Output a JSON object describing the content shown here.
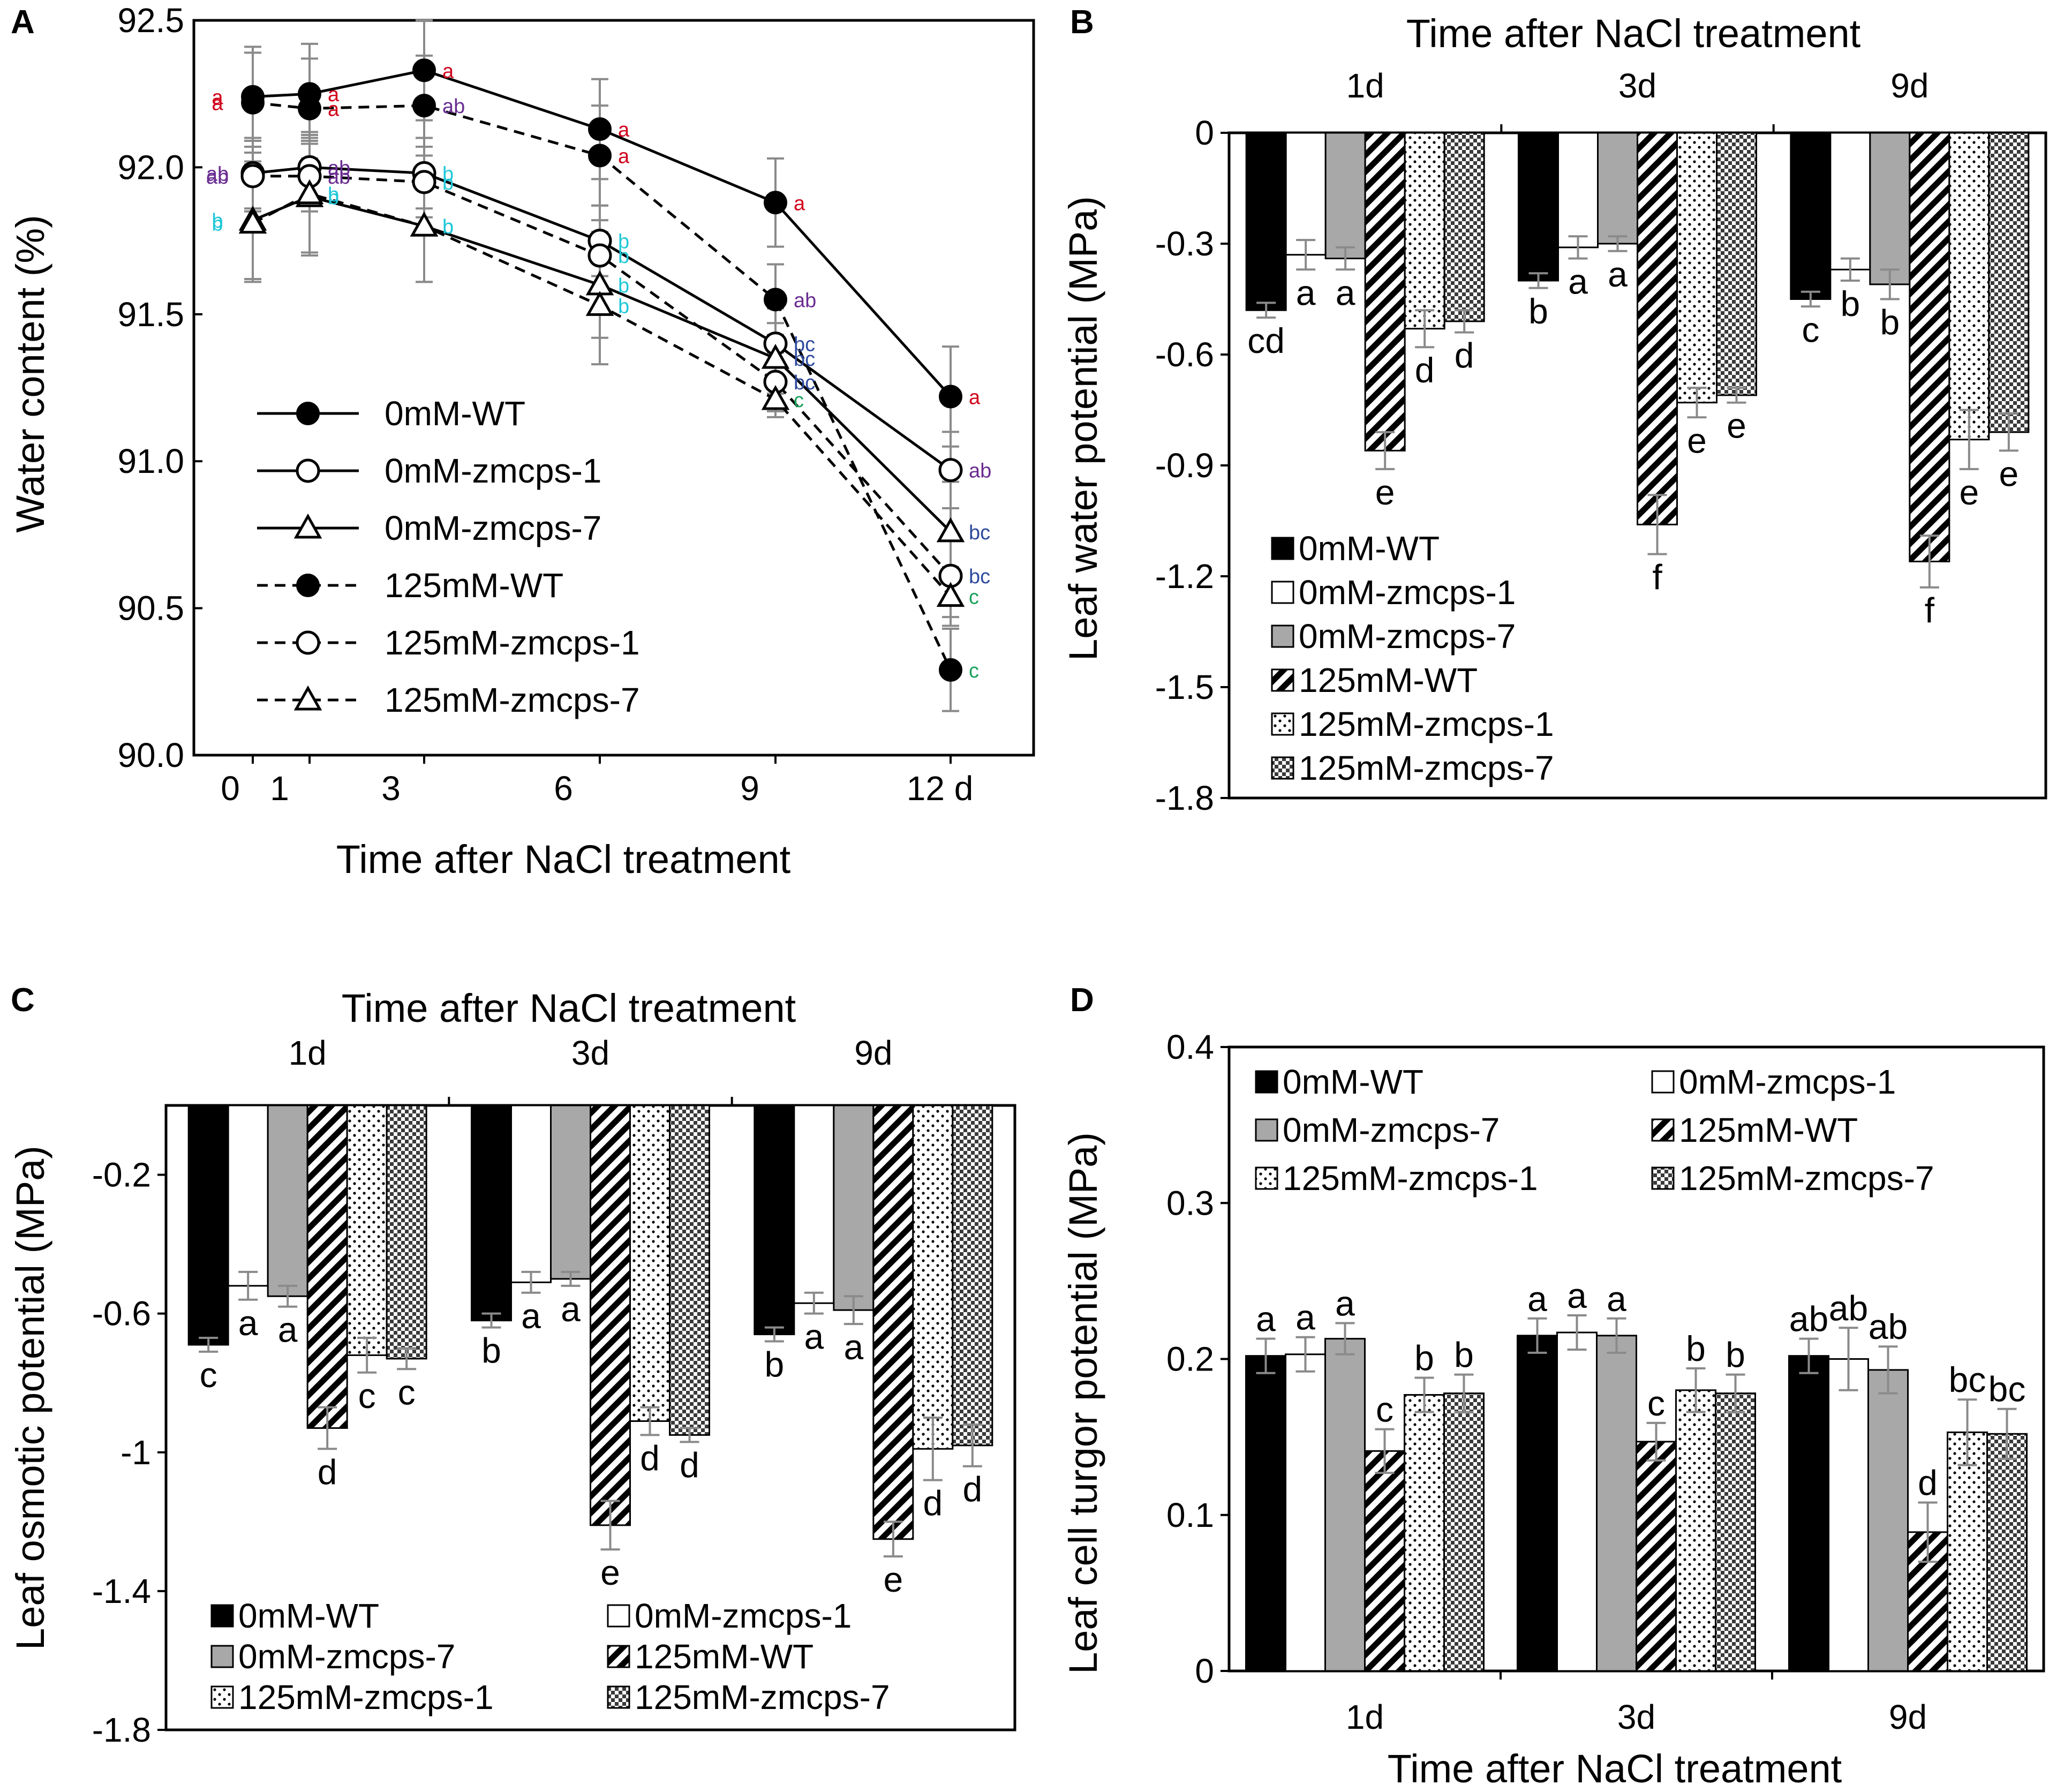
{
  "chart_data": [
    {
      "panel": "A",
      "type": "line",
      "title": "",
      "xlabel": "Time after NaCl treatment",
      "ylabel": "Water content (%)",
      "x_tick_labels": [
        "0",
        "1",
        "3",
        "6",
        "9",
        "12 d"
      ],
      "x_tick_values": [
        0,
        1,
        3,
        6,
        9,
        12
      ],
      "y_tick_labels": [
        "90.0",
        "90.5",
        "91.0",
        "91.5",
        "92.0",
        "92.5"
      ],
      "ylim": [
        90.0,
        92.5
      ],
      "x": [
        0,
        1,
        3,
        6,
        9,
        12
      ],
      "series": [
        {
          "name": "0mM-WT",
          "marker": "filled-circle",
          "line": "solid",
          "values": [
            92.24,
            92.25,
            92.33,
            92.13,
            91.88,
            91.22
          ],
          "errors": [
            0.17,
            0.17,
            0.17,
            0.17,
            0.15,
            0.17
          ],
          "letters": [
            "a",
            "a",
            "a",
            "a",
            "a",
            "a"
          ],
          "letter_color": "#d0021b"
        },
        {
          "name": "0mM-zmcps-1",
          "marker": "open-circle",
          "line": "solid",
          "values": [
            91.98,
            92.0,
            91.98,
            91.75,
            91.4,
            90.97
          ],
          "errors": [
            0.12,
            0.12,
            0.12,
            0.12,
            0.12,
            0.13
          ],
          "letters": [
            "ab",
            "ab",
            "b",
            "b",
            "bc",
            "ab"
          ],
          "letter_colors": [
            "#6a2c91",
            "#6a2c91",
            "#1ec8d8",
            "#1ec8d8",
            "#2e4a9e",
            "#6a2c91"
          ]
        },
        {
          "name": "0mM-zmcps-7",
          "marker": "open-triangle",
          "line": "solid",
          "values": [
            91.82,
            91.9,
            91.8,
            91.6,
            91.35,
            90.76
          ],
          "errors": [
            0.2,
            0.2,
            0.19,
            0.18,
            0.12,
            0.17
          ],
          "letters": [
            "b",
            "b",
            "b",
            "b",
            "bc",
            "bc"
          ],
          "letter_colors": [
            "#1ec8d8",
            "#1ec8d8",
            "#1ec8d8",
            "#1ec8d8",
            "#2e4a9e",
            "#2e4a9e"
          ]
        },
        {
          "name": "125mM-WT",
          "marker": "filled-circle",
          "line": "dashed",
          "values": [
            92.22,
            92.2,
            92.21,
            92.04,
            91.55,
            90.29
          ],
          "errors": [
            0.17,
            0.17,
            0.17,
            0.17,
            0.12,
            0.14
          ],
          "letters": [
            "a",
            "a",
            "ab",
            "a",
            "ab",
            "c"
          ],
          "letter_colors": [
            "#d0021b",
            "#d0021b",
            "#6a2c91",
            "#d0021b",
            "#6a2c91",
            "#1aa15a"
          ]
        },
        {
          "name": "125mM-zmcps-1",
          "marker": "open-circle",
          "line": "dashed",
          "values": [
            91.97,
            91.97,
            91.95,
            91.7,
            91.27,
            90.61
          ],
          "errors": [
            0.12,
            0.12,
            0.12,
            0.12,
            0.1,
            0.14
          ],
          "letters": [
            "ab",
            "ab",
            "b",
            "b",
            "bc",
            "bc"
          ],
          "letter_colors": [
            "#6a2c91",
            "#6a2c91",
            "#1ec8d8",
            "#1ec8d8",
            "#2e4a9e",
            "#2e4a9e"
          ]
        },
        {
          "name": "125mM-zmcps-7",
          "marker": "open-triangle",
          "line": "dashed",
          "values": [
            91.81,
            91.91,
            91.8,
            91.53,
            91.21,
            90.54
          ],
          "errors": [
            0.2,
            0.2,
            0.19,
            0.2,
            0.06,
            0.1
          ],
          "letters": [
            "b",
            "b",
            "b",
            "b",
            "c",
            "c"
          ],
          "letter_colors": [
            "#1ec8d8",
            "#1ec8d8",
            "#1ec8d8",
            "#1ec8d8",
            "#1aa15a",
            "#1aa15a"
          ]
        }
      ]
    },
    {
      "panel": "B",
      "type": "bar",
      "title": "Time after NaCl treatment",
      "xlabel": "",
      "ylabel": "Leaf water potential (MPa)",
      "categories": [
        "1d",
        "3d",
        "9d"
      ],
      "y_tick_labels": [
        "0",
        "-0.3",
        "-0.6",
        "-0.9",
        "-1.2",
        "-1.5",
        "-1.8"
      ],
      "ylim": [
        -1.8,
        0
      ],
      "legend_position": "bottom-left",
      "series": [
        {
          "name": "0mM-WT",
          "fill": "black",
          "values": [
            -0.48,
            -0.4,
            -0.45
          ],
          "errors": [
            0.02,
            0.02,
            0.02
          ],
          "letters": [
            "cd",
            "b",
            "c"
          ]
        },
        {
          "name": "0mM-zmcps-1",
          "fill": "white",
          "values": [
            -0.33,
            -0.31,
            -0.37
          ],
          "errors": [
            0.04,
            0.03,
            0.03
          ],
          "letters": [
            "a",
            "a",
            "b"
          ]
        },
        {
          "name": "0mM-zmcps-7",
          "fill": "gray",
          "values": [
            -0.34,
            -0.3,
            -0.41
          ],
          "errors": [
            0.03,
            0.02,
            0.04
          ],
          "letters": [
            "a",
            "a",
            "b"
          ]
        },
        {
          "name": "125mM-WT",
          "fill": "diagonal",
          "values": [
            -0.86,
            -1.06,
            -1.16
          ],
          "errors": [
            0.05,
            0.08,
            0.07
          ],
          "letters": [
            "e",
            "f",
            "f"
          ]
        },
        {
          "name": "125mM-zmcps-1",
          "fill": "dots",
          "values": [
            -0.53,
            -0.73,
            -0.83
          ],
          "errors": [
            0.05,
            0.04,
            0.08
          ],
          "letters": [
            "d",
            "e",
            "e"
          ]
        },
        {
          "name": "125mM-zmcps-7",
          "fill": "checker",
          "values": [
            -0.51,
            -0.71,
            -0.81
          ],
          "errors": [
            0.03,
            0.02,
            0.05
          ],
          "letters": [
            "d",
            "e",
            "e"
          ]
        }
      ]
    },
    {
      "panel": "C",
      "type": "bar",
      "title": "Time after NaCl treatment",
      "xlabel": "",
      "ylabel": "Leaf osmotic potential (MPa)",
      "categories": [
        "1d",
        "3d",
        "9d"
      ],
      "y_tick_labels": [
        "-0.2",
        "-0.6",
        "-1",
        "-1.4",
        "-1.8"
      ],
      "y_tick_values": [
        -0.2,
        -0.6,
        -1.0,
        -1.4,
        -1.8
      ],
      "ylim": [
        -1.8,
        0
      ],
      "legend_position": "bottom",
      "series": [
        {
          "name": "0mM-WT",
          "fill": "black",
          "values": [
            -0.69,
            -0.62,
            -0.66
          ],
          "errors": [
            0.02,
            0.02,
            0.02
          ],
          "letters": [
            "c",
            "b",
            "b"
          ]
        },
        {
          "name": "0mM-zmcps-1",
          "fill": "white",
          "values": [
            -0.52,
            -0.51,
            -0.57
          ],
          "errors": [
            0.04,
            0.03,
            0.03
          ],
          "letters": [
            "a",
            "a",
            "a"
          ]
        },
        {
          "name": "0mM-zmcps-7",
          "fill": "gray",
          "values": [
            -0.55,
            -0.5,
            -0.59
          ],
          "errors": [
            0.03,
            0.02,
            0.04
          ],
          "letters": [
            "a",
            "a",
            "a"
          ]
        },
        {
          "name": "125mM-WT",
          "fill": "diagonal",
          "values": [
            -0.93,
            -1.21,
            -1.25
          ],
          "errors": [
            0.06,
            0.07,
            0.05
          ],
          "letters": [
            "d",
            "e",
            "e"
          ]
        },
        {
          "name": "125mM-zmcps-1",
          "fill": "dots",
          "values": [
            -0.72,
            -0.91,
            -0.99
          ],
          "errors": [
            0.05,
            0.04,
            0.09
          ],
          "letters": [
            "c",
            "d",
            "d"
          ]
        },
        {
          "name": "125mM-zmcps-7",
          "fill": "checker",
          "values": [
            -0.73,
            -0.95,
            -0.98
          ],
          "errors": [
            0.03,
            0.02,
            0.06
          ],
          "letters": [
            "c",
            "d",
            "d"
          ]
        }
      ]
    },
    {
      "panel": "D",
      "type": "bar",
      "title": "",
      "xlabel": "Time after NaCl treatment",
      "ylabel": "Leaf cell turgor potential (MPa)",
      "categories": [
        "1d",
        "3d",
        "9d"
      ],
      "y_tick_labels": [
        "0",
        "0.1",
        "0.2",
        "0.3",
        "0.4"
      ],
      "ylim": [
        0,
        0.4
      ],
      "legend_position": "top",
      "series": [
        {
          "name": "0mM-WT",
          "fill": "black",
          "values": [
            0.202,
            0.215,
            0.202
          ],
          "errors": [
            0.011,
            0.011,
            0.011
          ],
          "letters": [
            "a",
            "a",
            "ab"
          ]
        },
        {
          "name": "0mM-zmcps-1",
          "fill": "white",
          "values": [
            0.203,
            0.217,
            0.2
          ],
          "errors": [
            0.011,
            0.011,
            0.02
          ],
          "letters": [
            "a",
            "a",
            "ab"
          ]
        },
        {
          "name": "0mM-zmcps-7",
          "fill": "gray",
          "values": [
            0.213,
            0.215,
            0.193
          ],
          "errors": [
            0.01,
            0.011,
            0.015
          ],
          "letters": [
            "a",
            "a",
            "ab"
          ]
        },
        {
          "name": "125mM-WT",
          "fill": "diagonal",
          "values": [
            0.141,
            0.147,
            0.089
          ],
          "errors": [
            0.014,
            0.012,
            0.019
          ],
          "letters": [
            "c",
            "c",
            "d"
          ]
        },
        {
          "name": "125mM-zmcps-1",
          "fill": "dots",
          "values": [
            0.177,
            0.18,
            0.153
          ],
          "errors": [
            0.011,
            0.014,
            0.021
          ],
          "letters": [
            "b",
            "b",
            "bc"
          ]
        },
        {
          "name": "125mM-zmcps-7",
          "fill": "checker",
          "values": [
            0.178,
            0.178,
            0.152
          ],
          "errors": [
            0.012,
            0.012,
            0.016
          ],
          "letters": [
            "b",
            "b",
            "bc"
          ]
        }
      ]
    }
  ]
}
